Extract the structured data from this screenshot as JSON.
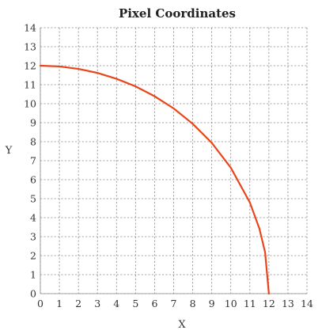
{
  "chart_data": {
    "type": "line",
    "title": "Pixel Coordinates",
    "xlabel": "X",
    "ylabel": "Y",
    "xlim": [
      0,
      14
    ],
    "ylim": [
      0,
      14
    ],
    "x_ticks": [
      "0",
      "1",
      "2",
      "3",
      "4",
      "5",
      "6",
      "7",
      "8",
      "9",
      "10",
      "11",
      "12",
      "13",
      "14"
    ],
    "y_ticks": [
      "0",
      "1",
      "2",
      "3",
      "4",
      "5",
      "6",
      "7",
      "8",
      "9",
      "10",
      "11",
      "12",
      "13",
      "14"
    ],
    "grid": true,
    "series": [
      {
        "color": "#e8461a",
        "x": [
          0,
          1,
          2,
          3,
          4,
          5,
          6,
          7,
          8,
          9,
          10,
          11,
          11.5,
          11.8,
          12
        ],
        "y": [
          12,
          11.96,
          11.83,
          11.62,
          11.31,
          10.91,
          10.39,
          9.75,
          8.94,
          7.94,
          6.63,
          4.8,
          3.43,
          2.18,
          0
        ]
      }
    ]
  }
}
